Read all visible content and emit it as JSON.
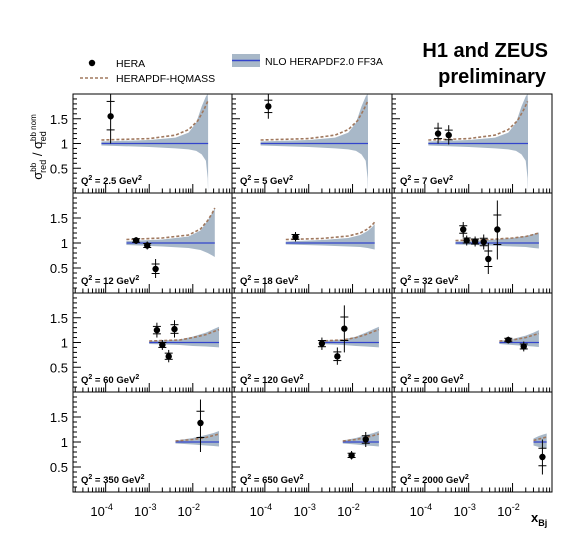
{
  "chart_data": {
    "type": "scatter",
    "title": {
      "line1": "H1 and ZEUS",
      "line2": "preliminary"
    },
    "ylabel": {
      "sigma": "σ",
      "sup1": "b",
      "sup2": "b",
      "sub1": "red",
      "slash": " / σ",
      "sup3": "b",
      "sup4": "b",
      "nom": " nom",
      "sub2": "red"
    },
    "xlabel": {
      "main": "x",
      "sub": "Bj"
    },
    "x_scale": "log",
    "xlim": [
      1.78e-05,
      0.0794
    ],
    "ylim": [
      0,
      2
    ],
    "y_ticks": [
      "0.5",
      "1",
      "1.5"
    ],
    "x_ticks": [
      {
        "value": 0.0001,
        "base": "10",
        "exp": "-4"
      },
      {
        "value": 0.001,
        "base": "10",
        "exp": "-3"
      },
      {
        "value": 0.01,
        "base": "10",
        "exp": "-2"
      }
    ],
    "grid": false,
    "legend": {
      "placement": "top-left",
      "entries": [
        {
          "key": "data",
          "label": "HERA"
        },
        {
          "key": "hqmass",
          "label": "HERAPDF-HQMASS"
        },
        {
          "key": "nlo",
          "label": "NLO HERAPDF2.0 FF3A"
        }
      ]
    },
    "colors": {
      "nlo_line": "#3344cc",
      "band": "#a8b8c8",
      "hqmass": "#a0785e",
      "data": "#000000"
    },
    "panels": [
      {
        "q2_label": "2.5",
        "unit": "GeV",
        "unit_exp": "2",
        "data": [
          {
            "x": 0.00013,
            "y": 1.55,
            "ylo": 1.0,
            "yhi": 2.15
          }
        ],
        "band": [
          [
            8e-05,
            0.96,
            1.04
          ],
          [
            0.001,
            0.93,
            1.07
          ],
          [
            0.004,
            0.9,
            1.12
          ],
          [
            0.008,
            0.88,
            1.22
          ],
          [
            0.012,
            0.85,
            1.42
          ],
          [
            0.016,
            0.78,
            1.75
          ],
          [
            0.02,
            0.65,
            1.95
          ],
          [
            0.022,
            0.3,
            2.0
          ],
          [
            0.0225,
            0.0,
            1.8
          ]
        ],
        "hqmass": [
          [
            8e-05,
            1.07
          ],
          [
            0.001,
            1.1
          ],
          [
            0.004,
            1.17
          ],
          [
            0.008,
            1.28
          ],
          [
            0.013,
            1.46
          ],
          [
            0.018,
            1.68
          ],
          [
            0.022,
            1.85
          ]
        ]
      },
      {
        "q2_label": "5",
        "unit": "GeV",
        "unit_exp": "2",
        "data": [
          {
            "x": 0.00012,
            "y": 1.75,
            "ylo": 1.5,
            "yhi": 2.0
          }
        ],
        "band": [
          [
            8e-05,
            0.96,
            1.04
          ],
          [
            0.001,
            0.93,
            1.07
          ],
          [
            0.004,
            0.9,
            1.12
          ],
          [
            0.008,
            0.88,
            1.22
          ],
          [
            0.012,
            0.85,
            1.42
          ],
          [
            0.016,
            0.78,
            1.75
          ],
          [
            0.02,
            0.65,
            1.95
          ],
          [
            0.022,
            0.3,
            2.0
          ],
          [
            0.0225,
            0.0,
            1.8
          ]
        ],
        "hqmass": [
          [
            8e-05,
            1.07
          ],
          [
            0.001,
            1.1
          ],
          [
            0.004,
            1.17
          ],
          [
            0.008,
            1.28
          ],
          [
            0.013,
            1.46
          ],
          [
            0.018,
            1.68
          ],
          [
            0.022,
            1.85
          ]
        ]
      },
      {
        "q2_label": "7",
        "unit": "GeV",
        "unit_exp": "2",
        "data": [
          {
            "x": 0.0002,
            "y": 1.2,
            "ylo": 1.0,
            "yhi": 1.42
          },
          {
            "x": 0.00035,
            "y": 1.17,
            "ylo": 0.98,
            "yhi": 1.37
          }
        ],
        "band": [
          [
            0.00012,
            0.96,
            1.04
          ],
          [
            0.001,
            0.93,
            1.07
          ],
          [
            0.004,
            0.9,
            1.12
          ],
          [
            0.008,
            0.88,
            1.22
          ],
          [
            0.012,
            0.85,
            1.42
          ],
          [
            0.016,
            0.78,
            1.75
          ],
          [
            0.02,
            0.65,
            1.95
          ],
          [
            0.022,
            0.3,
            2.0
          ],
          [
            0.0225,
            0.0,
            1.8
          ]
        ],
        "hqmass": [
          [
            0.00012,
            1.07
          ],
          [
            0.001,
            1.1
          ],
          [
            0.004,
            1.17
          ],
          [
            0.008,
            1.28
          ],
          [
            0.013,
            1.46
          ],
          [
            0.018,
            1.68
          ],
          [
            0.022,
            1.85
          ]
        ]
      },
      {
        "q2_label": "12",
        "unit": "GeV",
        "unit_exp": "2",
        "data": [
          {
            "x": 0.0005,
            "y": 1.05,
            "ylo": 0.98,
            "yhi": 1.12
          },
          {
            "x": 0.0009,
            "y": 0.95,
            "ylo": 0.87,
            "yhi": 1.03
          },
          {
            "x": 0.0014,
            "y": 0.48,
            "ylo": 0.3,
            "yhi": 0.68
          }
        ],
        "band": [
          [
            0.0003,
            0.96,
            1.04
          ],
          [
            0.002,
            0.93,
            1.07
          ],
          [
            0.008,
            0.9,
            1.13
          ],
          [
            0.015,
            0.86,
            1.25
          ],
          [
            0.022,
            0.8,
            1.45
          ],
          [
            0.028,
            0.75,
            1.6
          ],
          [
            0.032,
            0.72,
            1.7
          ]
        ],
        "hqmass": [
          [
            0.0003,
            1.07
          ],
          [
            0.002,
            1.1
          ],
          [
            0.008,
            1.16
          ],
          [
            0.015,
            1.28
          ],
          [
            0.022,
            1.45
          ],
          [
            0.028,
            1.6
          ],
          [
            0.032,
            1.7
          ]
        ]
      },
      {
        "q2_label": "18",
        "unit": "GeV",
        "unit_exp": "2",
        "data": [
          {
            "x": 0.0005,
            "y": 1.12,
            "ylo": 1.03,
            "yhi": 1.22
          }
        ],
        "band": [
          [
            0.0003,
            0.97,
            1.03
          ],
          [
            0.002,
            0.95,
            1.06
          ],
          [
            0.008,
            0.93,
            1.1
          ],
          [
            0.015,
            0.92,
            1.16
          ],
          [
            0.022,
            0.9,
            1.24
          ],
          [
            0.028,
            0.88,
            1.32
          ],
          [
            0.032,
            0.87,
            1.38
          ]
        ],
        "hqmass": [
          [
            0.0003,
            1.07
          ],
          [
            0.002,
            1.09
          ],
          [
            0.008,
            1.14
          ],
          [
            0.015,
            1.2
          ],
          [
            0.022,
            1.28
          ],
          [
            0.028,
            1.36
          ],
          [
            0.032,
            1.42
          ]
        ]
      },
      {
        "q2_label": "32",
        "unit": "GeV",
        "unit_exp": "2",
        "data": [
          {
            "x": 0.00075,
            "y": 1.27,
            "ylo": 1.12,
            "yhi": 1.42
          },
          {
            "x": 0.0009,
            "y": 1.05,
            "ylo": 0.95,
            "yhi": 1.15
          },
          {
            "x": 0.0014,
            "y": 1.03,
            "ylo": 0.93,
            "yhi": 1.13
          },
          {
            "x": 0.0022,
            "y": 1.02,
            "ylo": 0.87,
            "yhi": 1.17
          },
          {
            "x": 0.0028,
            "y": 0.68,
            "ylo": 0.38,
            "yhi": 1.0
          },
          {
            "x": 0.0045,
            "y": 1.27,
            "ylo": 0.67,
            "yhi": 1.85
          }
        ],
        "band": [
          [
            0.0005,
            0.97,
            1.03
          ],
          [
            0.003,
            0.95,
            1.06
          ],
          [
            0.01,
            0.93,
            1.1
          ],
          [
            0.02,
            0.92,
            1.14
          ],
          [
            0.03,
            0.9,
            1.18
          ],
          [
            0.04,
            0.89,
            1.21
          ]
        ],
        "hqmass": [
          [
            0.0005,
            1.05
          ],
          [
            0.003,
            1.07
          ],
          [
            0.01,
            1.1
          ],
          [
            0.02,
            1.13
          ],
          [
            0.03,
            1.17
          ],
          [
            0.04,
            1.2
          ]
        ]
      },
      {
        "q2_label": "60",
        "unit": "GeV",
        "unit_exp": "2",
        "data": [
          {
            "x": 0.0015,
            "y": 1.25,
            "ylo": 1.1,
            "yhi": 1.4
          },
          {
            "x": 0.002,
            "y": 0.95,
            "ylo": 0.85,
            "yhi": 1.05
          },
          {
            "x": 0.0028,
            "y": 0.72,
            "ylo": 0.6,
            "yhi": 0.85
          },
          {
            "x": 0.0038,
            "y": 1.27,
            "ylo": 1.1,
            "yhi": 1.45
          }
        ],
        "band": [
          [
            0.001,
            0.97,
            1.03
          ],
          [
            0.005,
            0.95,
            1.06
          ],
          [
            0.01,
            0.93,
            1.12
          ],
          [
            0.02,
            0.92,
            1.2
          ],
          [
            0.03,
            0.91,
            1.27
          ],
          [
            0.04,
            0.9,
            1.32
          ]
        ],
        "hqmass": [
          [
            0.001,
            1.03
          ],
          [
            0.005,
            1.05
          ],
          [
            0.01,
            1.1
          ],
          [
            0.02,
            1.16
          ],
          [
            0.03,
            1.22
          ],
          [
            0.04,
            1.26
          ]
        ]
      },
      {
        "q2_label": "120",
        "unit": "GeV",
        "unit_exp": "2",
        "data": [
          {
            "x": 0.002,
            "y": 0.98,
            "ylo": 0.85,
            "yhi": 1.1
          },
          {
            "x": 0.0045,
            "y": 0.72,
            "ylo": 0.55,
            "yhi": 0.9
          },
          {
            "x": 0.0065,
            "y": 1.28,
            "ylo": 0.8,
            "yhi": 1.75
          }
        ],
        "band": [
          [
            0.0018,
            0.97,
            1.03
          ],
          [
            0.006,
            0.95,
            1.06
          ],
          [
            0.012,
            0.93,
            1.12
          ],
          [
            0.02,
            0.92,
            1.2
          ],
          [
            0.03,
            0.91,
            1.27
          ],
          [
            0.04,
            0.9,
            1.32
          ]
        ],
        "hqmass": [
          [
            0.0018,
            1.03
          ],
          [
            0.006,
            1.05
          ],
          [
            0.012,
            1.1
          ],
          [
            0.02,
            1.16
          ],
          [
            0.03,
            1.22
          ],
          [
            0.04,
            1.26
          ]
        ]
      },
      {
        "q2_label": "200",
        "unit": "GeV",
        "unit_exp": "2",
        "data": [
          {
            "x": 0.008,
            "y": 1.05,
            "ylo": 0.98,
            "yhi": 1.12
          },
          {
            "x": 0.018,
            "y": 0.92,
            "ylo": 0.82,
            "yhi": 1.02
          }
        ],
        "band": [
          [
            0.005,
            0.97,
            1.03
          ],
          [
            0.01,
            0.95,
            1.07
          ],
          [
            0.02,
            0.93,
            1.14
          ],
          [
            0.03,
            0.92,
            1.2
          ],
          [
            0.04,
            0.91,
            1.25
          ]
        ],
        "hqmass": [
          [
            0.005,
            1.03
          ],
          [
            0.01,
            1.05
          ],
          [
            0.02,
            1.1
          ],
          [
            0.03,
            1.15
          ],
          [
            0.04,
            1.18
          ]
        ]
      },
      {
        "q2_label": "350",
        "unit": "GeV",
        "unit_exp": "2",
        "data": [
          {
            "x": 0.015,
            "y": 1.38,
            "ylo": 0.8,
            "yhi": 1.85
          }
        ],
        "band": [
          [
            0.004,
            0.97,
            1.03
          ],
          [
            0.01,
            0.95,
            1.08
          ],
          [
            0.02,
            0.93,
            1.14
          ],
          [
            0.03,
            0.92,
            1.18
          ],
          [
            0.04,
            0.91,
            1.22
          ]
        ],
        "hqmass": [
          [
            0.004,
            1.02
          ],
          [
            0.01,
            1.05
          ],
          [
            0.02,
            1.09
          ],
          [
            0.03,
            1.13
          ],
          [
            0.04,
            1.16
          ]
        ]
      },
      {
        "q2_label": "650",
        "unit": "GeV",
        "unit_exp": "2",
        "data": [
          {
            "x": 0.0095,
            "y": 0.73,
            "ylo": 0.65,
            "yhi": 0.82
          },
          {
            "x": 0.02,
            "y": 1.05,
            "ylo": 0.9,
            "yhi": 1.2
          }
        ],
        "band": [
          [
            0.006,
            0.97,
            1.03
          ],
          [
            0.012,
            0.95,
            1.08
          ],
          [
            0.02,
            0.93,
            1.14
          ],
          [
            0.03,
            0.92,
            1.18
          ],
          [
            0.04,
            0.91,
            1.22
          ]
        ],
        "hqmass": [
          [
            0.006,
            1.02
          ],
          [
            0.012,
            1.05
          ],
          [
            0.02,
            1.09
          ],
          [
            0.03,
            1.13
          ],
          [
            0.04,
            1.16
          ]
        ]
      },
      {
        "q2_label": "2000",
        "unit": "GeV",
        "unit_exp": "2",
        "data": [
          {
            "x": 0.048,
            "y": 0.7,
            "ylo": 0.35,
            "yhi": 1.05
          }
        ],
        "band": [
          [
            0.03,
            0.93,
            1.07
          ],
          [
            0.04,
            0.9,
            1.12
          ],
          [
            0.05,
            0.88,
            1.15
          ],
          [
            0.06,
            0.87,
            1.17
          ]
        ],
        "hqmass": [
          [
            0.03,
            1.03
          ],
          [
            0.04,
            1.06
          ],
          [
            0.05,
            1.08
          ],
          [
            0.06,
            1.1
          ]
        ]
      }
    ]
  }
}
